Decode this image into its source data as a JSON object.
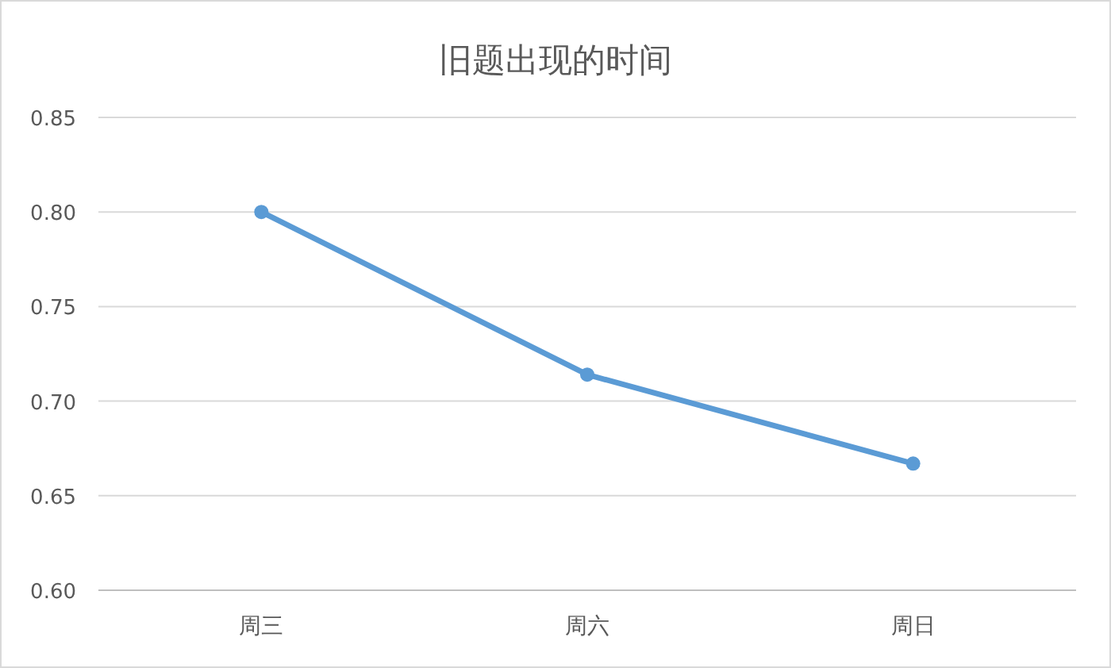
{
  "chart_data": {
    "type": "line",
    "title": "旧题出现的时间",
    "categories": [
      "周三",
      "周六",
      "周日"
    ],
    "series": [
      {
        "color": "#5b9bd5",
        "values": [
          0.8,
          0.714,
          0.667
        ]
      }
    ],
    "ylim": [
      0.6,
      0.85
    ],
    "yticks": [
      {
        "value": 0.6,
        "label": "0.60"
      },
      {
        "value": 0.65,
        "label": "0.65"
      },
      {
        "value": 0.7,
        "label": "0.70"
      },
      {
        "value": 0.75,
        "label": "0.75"
      },
      {
        "value": 0.8,
        "label": "0.80"
      },
      {
        "value": 0.85,
        "label": "0.85"
      }
    ],
    "grid": "y",
    "marker": "circle",
    "line_style": "solid"
  }
}
